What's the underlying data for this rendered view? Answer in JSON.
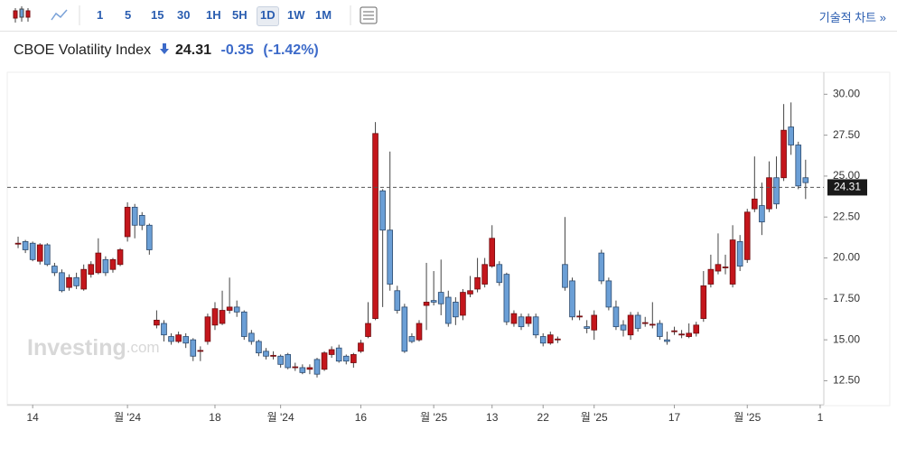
{
  "toolbar": {
    "intervals": [
      "1",
      "5",
      "15",
      "30",
      "1H",
      "5H",
      "1D",
      "1W",
      "1M"
    ],
    "active_interval": "1D",
    "tech_chart": "기술적 차트 »"
  },
  "header": {
    "name": "CBOE Volatility Index",
    "price": "24.31",
    "change": "-0.35",
    "change_pct": "(-1.42%)"
  },
  "chart_data": {
    "type": "candlestick",
    "watermark": [
      "Investing",
      ".com"
    ],
    "categories": [
      null,
      null,
      "14",
      null,
      null,
      null,
      null,
      null,
      null,
      null,
      null,
      null,
      null,
      null,
      null,
      "월 '24",
      null,
      null,
      null,
      null,
      null,
      null,
      null,
      null,
      null,
      null,
      null,
      "18",
      null,
      null,
      null,
      null,
      null,
      null,
      null,
      null,
      "월 '24",
      null,
      null,
      null,
      null,
      null,
      null,
      null,
      null,
      null,
      null,
      "16",
      null,
      null,
      null,
      null,
      null,
      null,
      null,
      null,
      null,
      "월 '25",
      null,
      null,
      null,
      null,
      null,
      null,
      null,
      "13",
      null,
      null,
      null,
      null,
      null,
      null,
      "22",
      null,
      null,
      null,
      null,
      null,
      null,
      "월 '25",
      null,
      null,
      null,
      null,
      null,
      null,
      null,
      null,
      null,
      null,
      "17",
      null,
      null,
      null,
      null,
      null,
      null,
      null,
      null,
      null,
      "월 '25",
      null,
      null,
      null,
      null,
      null,
      null,
      null,
      null,
      null,
      "1"
    ],
    "open": [
      20.9,
      21.0,
      20.9,
      19.8,
      20.8,
      19.5,
      19.1,
      18.2,
      18.8,
      18.1,
      19.0,
      19.1,
      19.9,
      19.3,
      19.6,
      21.3,
      23.1,
      22.6,
      22.0,
      15.9,
      16.0,
      15.2,
      14.9,
      15.2,
      15.0,
      14.3,
      14.9,
      15.9,
      16.0,
      16.8,
      17.0,
      16.7,
      15.4,
      14.9,
      14.3,
      14.0,
      14.0,
      14.1,
      13.3,
      13.3,
      13.2,
      13.8,
      13.2,
      14.1,
      14.5,
      14.0,
      13.6,
      14.3,
      15.2,
      16.3,
      24.1,
      21.7,
      18.0,
      17.0,
      15.2,
      15.0,
      17.1,
      17.4,
      17.9,
      17.6,
      17.3,
      16.5,
      17.8,
      18.1,
      18.4,
      19.5,
      19.6,
      19.0,
      16.0,
      16.4,
      16.0,
      16.4,
      15.2,
      14.8,
      15.0,
      19.6,
      18.6,
      16.4,
      15.8,
      15.6,
      20.3,
      18.6,
      17.0,
      15.9,
      15.3,
      16.5,
      16.0,
      15.9,
      16.0,
      15.0,
      15.5,
      15.3,
      15.2,
      15.4,
      16.3,
      18.4,
      19.2,
      19.4,
      18.4,
      21.0,
      19.9,
      23.0,
      23.2,
      23.0,
      24.9,
      24.9,
      28.0,
      26.9,
      24.9,
      null,
      null
    ],
    "high": [
      21.3,
      21.1,
      21.0,
      20.9,
      20.9,
      19.7,
      19.3,
      19.0,
      19.1,
      19.6,
      19.8,
      21.2,
      20.1,
      20.0,
      20.6,
      23.4,
      23.3,
      22.8,
      22.1,
      16.8,
      16.2,
      15.4,
      15.5,
      15.4,
      15.1,
      14.6,
      16.6,
      17.3,
      18.0,
      18.8,
      17.4,
      16.8,
      15.6,
      15.0,
      14.5,
      14.3,
      14.1,
      14.2,
      13.6,
      13.5,
      13.5,
      13.9,
      14.3,
      14.6,
      14.7,
      14.1,
      14.2,
      15.0,
      17.3,
      28.3,
      24.2,
      26.5,
      18.3,
      17.2,
      15.4,
      16.2,
      19.7,
      19.2,
      19.9,
      18.0,
      17.6,
      18.1,
      18.9,
      20.0,
      20.0,
      22.0,
      19.8,
      19.1,
      16.8,
      16.6,
      16.6,
      16.6,
      15.4,
      15.5,
      15.2,
      22.5,
      18.8,
      16.8,
      16.2,
      16.8,
      20.5,
      18.8,
      17.4,
      16.2,
      16.7,
      16.7,
      16.4,
      17.3,
      16.2,
      15.5,
      15.8,
      15.6,
      16.0,
      16.1,
      19.2,
      20.2,
      21.5,
      20.2,
      22.0,
      21.4,
      23.0,
      26.2,
      24.6,
      25.9,
      26.2,
      29.4,
      29.5,
      27.1,
      26.0,
      null,
      null
    ],
    "low": [
      20.6,
      20.3,
      19.8,
      19.6,
      19.5,
      18.9,
      17.9,
      18.0,
      18.1,
      18.0,
      18.8,
      19.0,
      18.9,
      19.1,
      19.5,
      21.0,
      21.2,
      21.7,
      20.2,
      15.7,
      14.9,
      14.7,
      14.8,
      14.5,
      13.7,
      13.7,
      14.7,
      15.6,
      15.9,
      16.6,
      16.4,
      15.0,
      14.7,
      14.0,
      13.8,
      13.8,
      13.3,
      13.2,
      13.1,
      12.9,
      12.9,
      12.7,
      13.1,
      13.9,
      13.6,
      13.5,
      13.3,
      14.2,
      15.1,
      16.2,
      17.0,
      18.0,
      16.6,
      14.2,
      14.8,
      14.9,
      15.6,
      17.1,
      16.5,
      15.8,
      15.9,
      16.2,
      17.6,
      17.9,
      18.2,
      19.4,
      18.3,
      15.9,
      15.8,
      15.6,
      15.8,
      15.1,
      14.6,
      14.7,
      14.8,
      18.0,
      16.2,
      16.2,
      15.4,
      15.0,
      18.4,
      16.8,
      15.6,
      15.2,
      15.0,
      15.5,
      15.8,
      15.7,
      15.0,
      14.7,
      15.3,
      15.1,
      15.1,
      15.2,
      16.1,
      18.2,
      19.0,
      19.0,
      18.2,
      19.2,
      19.7,
      22.8,
      21.4,
      22.8,
      23.0,
      24.7,
      26.3,
      24.2,
      23.6,
      null,
      null
    ],
    "close": [
      20.9,
      20.5,
      19.9,
      20.8,
      19.6,
      19.1,
      18.0,
      18.8,
      18.3,
      19.3,
      19.6,
      20.3,
      19.1,
      19.9,
      20.5,
      23.1,
      22.0,
      22.0,
      20.5,
      16.2,
      15.3,
      14.9,
      15.3,
      14.8,
      14.0,
      14.35,
      16.4,
      16.9,
      16.8,
      17.0,
      16.7,
      15.2,
      14.9,
      14.2,
      14.0,
      14.05,
      13.5,
      13.3,
      13.35,
      13.0,
      13.3,
      12.9,
      14.2,
      14.4,
      13.7,
      13.7,
      14.1,
      14.8,
      16.0,
      27.6,
      21.7,
      18.4,
      16.8,
      14.3,
      14.9,
      16.0,
      17.3,
      17.3,
      17.2,
      16.0,
      16.4,
      17.9,
      18.0,
      18.8,
      19.6,
      21.2,
      18.5,
      16.1,
      16.6,
      15.8,
      16.4,
      15.3,
      14.8,
      15.3,
      15.05,
      18.2,
      16.4,
      16.45,
      15.7,
      16.5,
      18.6,
      17.0,
      15.8,
      15.6,
      16.5,
      15.7,
      16.05,
      15.95,
      15.2,
      14.9,
      15.55,
      15.35,
      15.4,
      15.9,
      18.3,
      19.3,
      19.6,
      19.45,
      21.1,
      19.5,
      22.8,
      23.6,
      22.2,
      24.9,
      23.3,
      27.8,
      26.9,
      24.4,
      24.6,
      null,
      null
    ],
    "up_color": "#c4161c",
    "down_color": "#6b9fd6",
    "price_line": 24.31,
    "ylim": [
      11.2,
      30.9
    ],
    "yticks": [
      {
        "value": 12.5,
        "label": "12.50"
      },
      {
        "value": 15,
        "label": "15.00"
      },
      {
        "value": 17.5,
        "label": "17.50"
      },
      {
        "value": 20,
        "label": "20.00"
      },
      {
        "value": 22.5,
        "label": "22.50"
      },
      {
        "value": 25,
        "label": "25.00"
      },
      {
        "value": 27.5,
        "label": "27.50"
      },
      {
        "value": 30,
        "label": "30.00"
      }
    ],
    "grid": false
  }
}
